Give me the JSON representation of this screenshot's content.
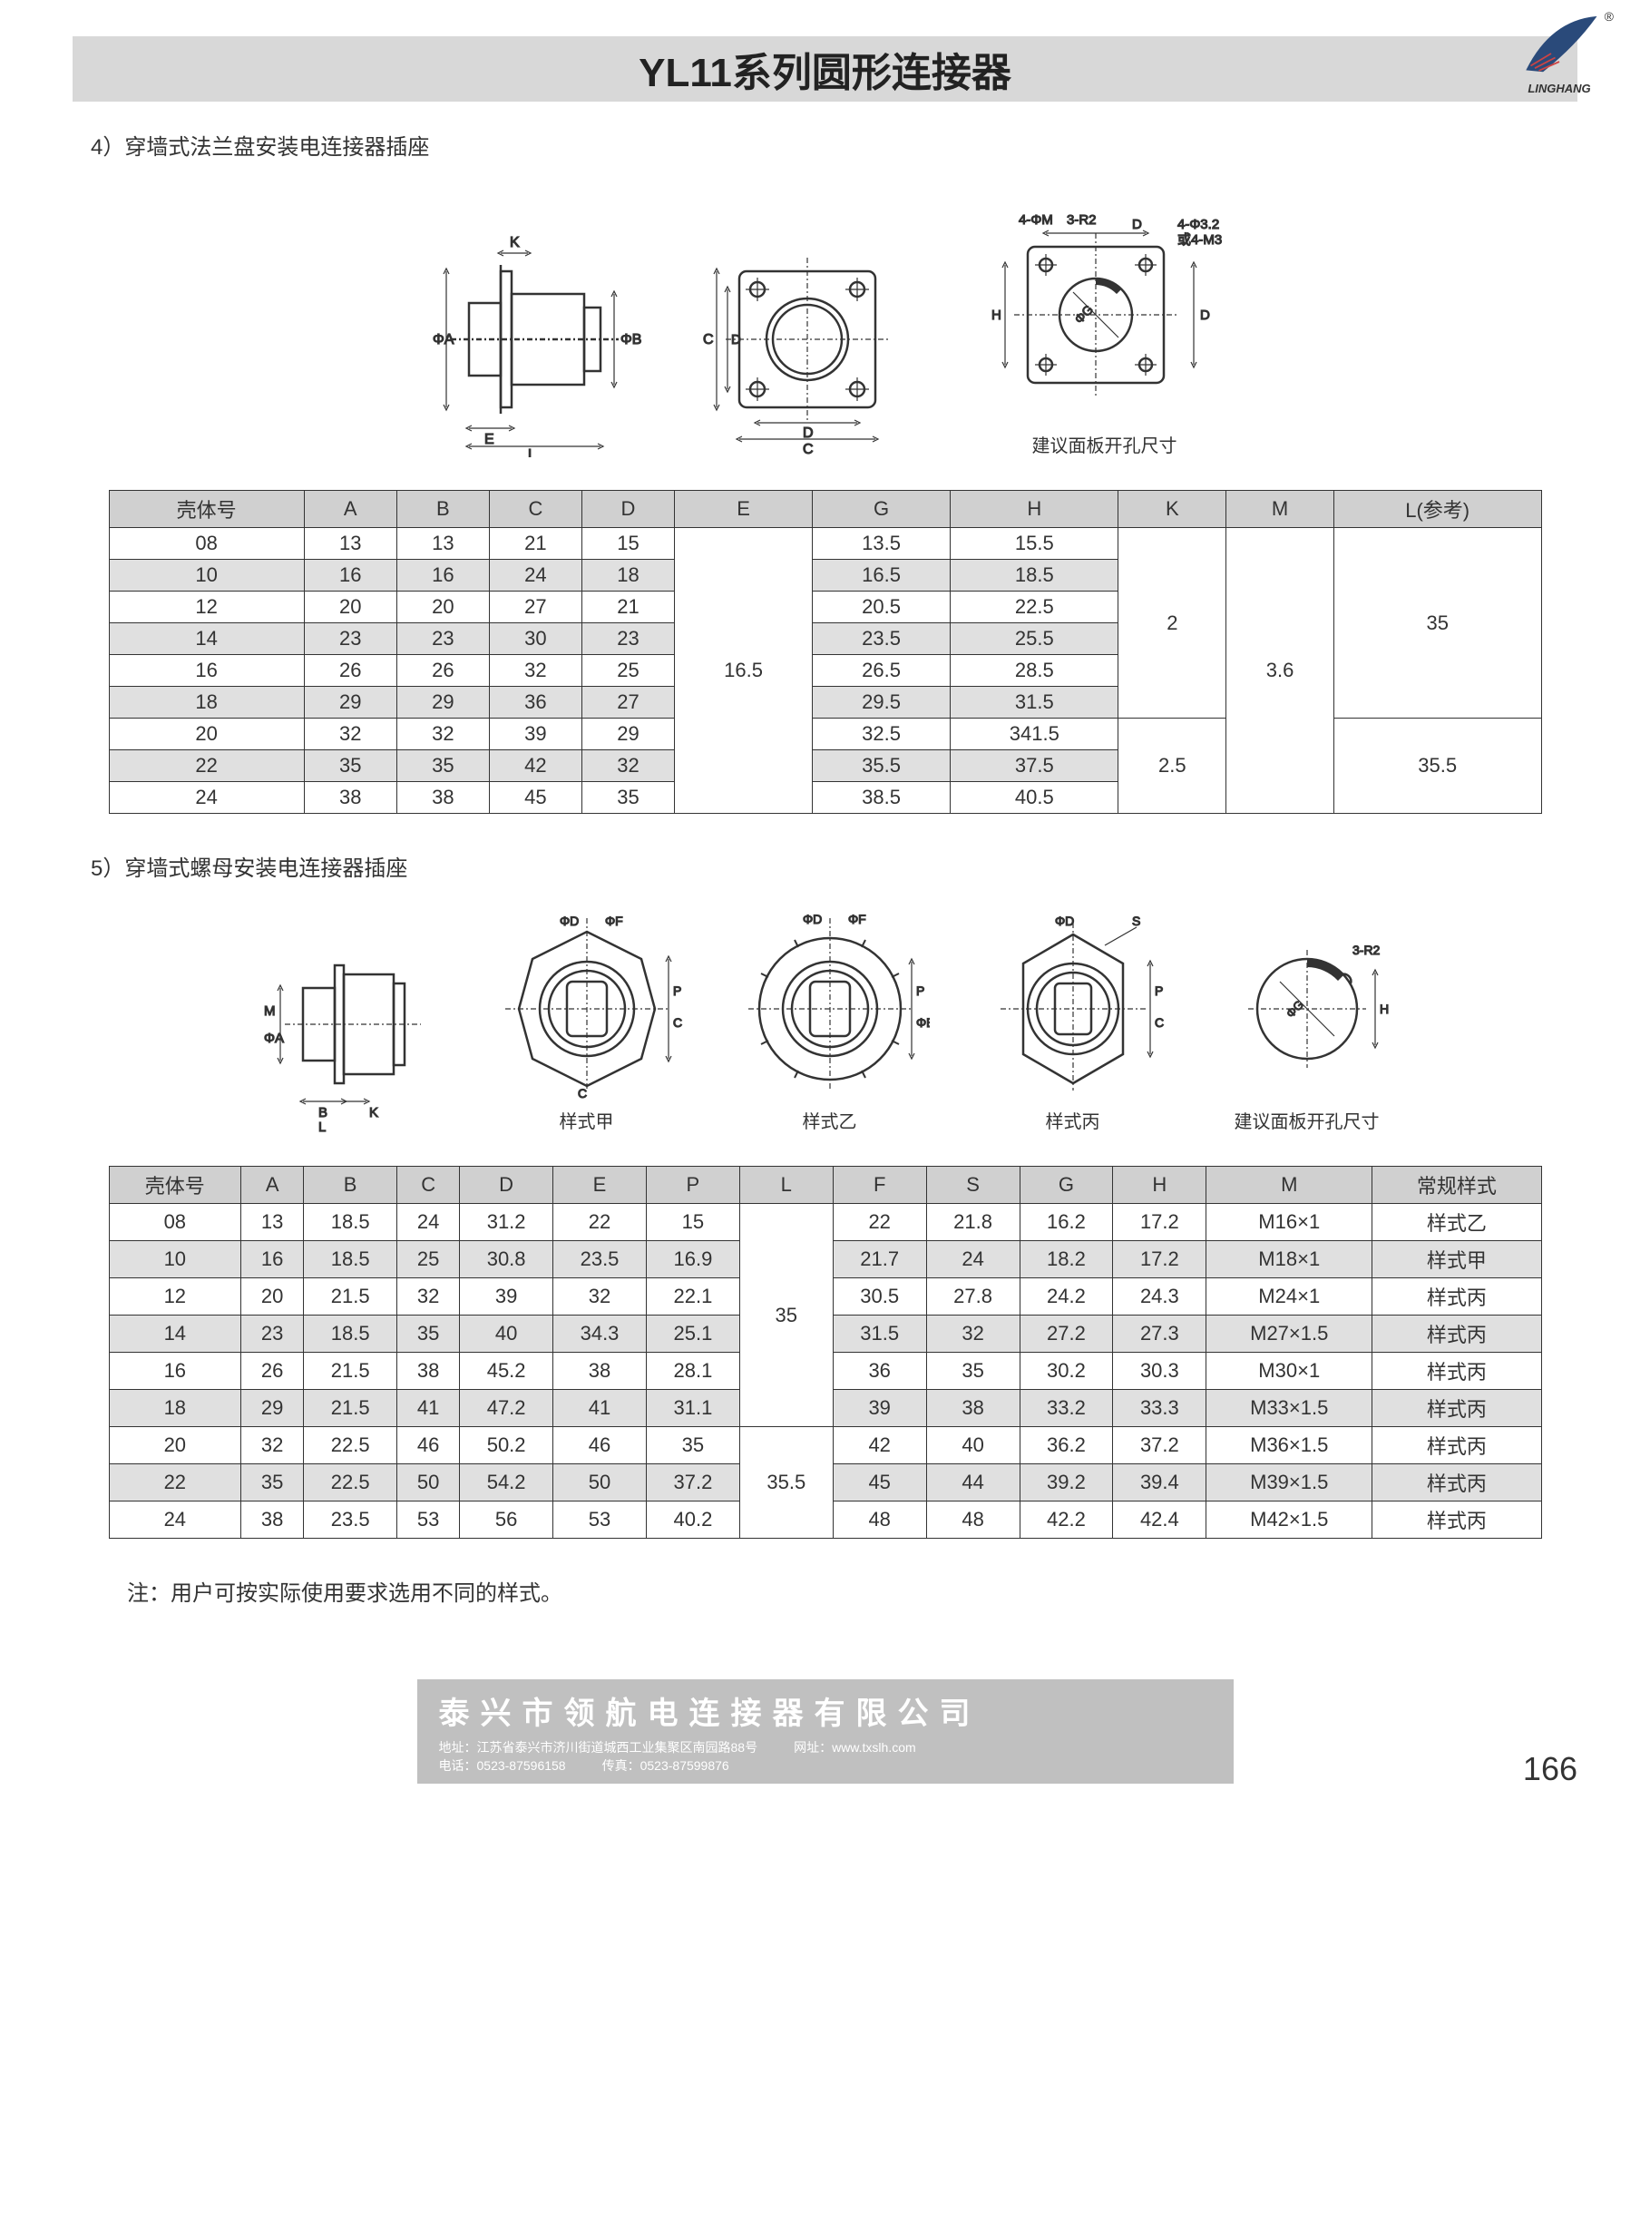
{
  "page": {
    "title": "YL11系列圆形连接器",
    "logo_text": "LINGHANG",
    "registered_mark": "®",
    "number": "166"
  },
  "section4": {
    "heading": "4）穿墙式法兰盘安装电连接器插座",
    "diagram_labels": {
      "d1_A": "ΦA",
      "d1_B": "ΦB",
      "d1_K": "K",
      "d1_E": "E",
      "d1_L": "L",
      "d2_C": "C",
      "d2_D": "D",
      "d3_top1": "4-ΦM",
      "d3_top2": "3-R2",
      "d3_D": "D",
      "d3_H": "H",
      "d3_right": "4-Φ3.2\n或4-M3",
      "d3_G": "ΦG",
      "d3_caption": "建议面板开孔尺寸"
    },
    "table": {
      "headers": [
        "壳体号",
        "A",
        "B",
        "C",
        "D",
        "E",
        "G",
        "H",
        "K",
        "M",
        "L(参考)"
      ],
      "rows": [
        {
          "cells": [
            "08",
            "13",
            "13",
            "21",
            "15",
            "",
            "13.5",
            "15.5",
            "",
            "",
            ""
          ],
          "shaded": false,
          "e_span": 9,
          "k_span": 6,
          "m_span": 6,
          "l_span": 6,
          "e_val": "16.5",
          "k_val": "2",
          "m_val": "3.6",
          "l_val": "35"
        },
        {
          "cells": [
            "10",
            "16",
            "16",
            "24",
            "18",
            "",
            "16.5",
            "18.5",
            "",
            "",
            ""
          ],
          "shaded": true
        },
        {
          "cells": [
            "12",
            "20",
            "20",
            "27",
            "21",
            "",
            "20.5",
            "22.5",
            "",
            "",
            ""
          ],
          "shaded": false
        },
        {
          "cells": [
            "14",
            "23",
            "23",
            "30",
            "23",
            "",
            "23.5",
            "25.5",
            "",
            "",
            ""
          ],
          "shaded": true
        },
        {
          "cells": [
            "16",
            "26",
            "26",
            "32",
            "25",
            "",
            "26.5",
            "28.5",
            "",
            "",
            ""
          ],
          "shaded": false
        },
        {
          "cells": [
            "18",
            "29",
            "29",
            "36",
            "27",
            "",
            "29.5",
            "31.5",
            "",
            "",
            ""
          ],
          "shaded": true
        },
        {
          "cells": [
            "20",
            "32",
            "32",
            "39",
            "29",
            "",
            "32.5",
            "341.5",
            "",
            "",
            ""
          ],
          "shaded": false,
          "k_span2": 3,
          "l_span2": 3,
          "k_val2": "2.5",
          "l_val2": "35.5"
        },
        {
          "cells": [
            "22",
            "35",
            "35",
            "42",
            "32",
            "",
            "35.5",
            "37.5",
            "",
            "",
            ""
          ],
          "shaded": true
        },
        {
          "cells": [
            "24",
            "38",
            "38",
            "45",
            "35",
            "",
            "38.5",
            "40.5",
            "",
            "",
            ""
          ],
          "shaded": false
        }
      ]
    }
  },
  "section5": {
    "heading": "5）穿墙式螺母安装电连接器插座",
    "diagram_labels": {
      "d1_A": "ΦA",
      "d1_M": "M",
      "d1_B": "B",
      "d1_K": "K",
      "d1_L": "L",
      "style_a": "样式甲",
      "style_b": "样式乙",
      "style_c": "样式丙",
      "dF": "ΦF",
      "dD": "ΦD",
      "dC": "C",
      "dP": "P",
      "dE": "ΦE",
      "dS": "S",
      "panel_G": "ΦG",
      "panel_H": "H",
      "panel_R": "3-R2",
      "panel_caption": "建议面板开孔尺寸"
    },
    "table": {
      "headers": [
        "壳体号",
        "A",
        "B",
        "C",
        "D",
        "E",
        "P",
        "L",
        "F",
        "S",
        "G",
        "H",
        "M",
        "常规样式"
      ],
      "rows": [
        {
          "cells": [
            "08",
            "13",
            "18.5",
            "24",
            "31.2",
            "22",
            "15",
            "",
            "22",
            "21.8",
            "16.2",
            "17.2",
            "M16×1",
            "样式乙"
          ],
          "shaded": false,
          "l_span": 6,
          "l_val": "35"
        },
        {
          "cells": [
            "10",
            "16",
            "18.5",
            "25",
            "30.8",
            "23.5",
            "16.9",
            "",
            "21.7",
            "24",
            "18.2",
            "17.2",
            "M18×1",
            "样式甲"
          ],
          "shaded": true
        },
        {
          "cells": [
            "12",
            "20",
            "21.5",
            "32",
            "39",
            "32",
            "22.1",
            "",
            "30.5",
            "27.8",
            "24.2",
            "24.3",
            "M24×1",
            "样式丙"
          ],
          "shaded": false
        },
        {
          "cells": [
            "14",
            "23",
            "18.5",
            "35",
            "40",
            "34.3",
            "25.1",
            "",
            "31.5",
            "32",
            "27.2",
            "27.3",
            "M27×1.5",
            "样式丙"
          ],
          "shaded": true
        },
        {
          "cells": [
            "16",
            "26",
            "21.5",
            "38",
            "45.2",
            "38",
            "28.1",
            "",
            "36",
            "35",
            "30.2",
            "30.3",
            "M30×1",
            "样式丙"
          ],
          "shaded": false
        },
        {
          "cells": [
            "18",
            "29",
            "21.5",
            "41",
            "47.2",
            "41",
            "31.1",
            "",
            "39",
            "38",
            "33.2",
            "33.3",
            "M33×1.5",
            "样式丙"
          ],
          "shaded": true
        },
        {
          "cells": [
            "20",
            "32",
            "22.5",
            "46",
            "50.2",
            "46",
            "35",
            "",
            "42",
            "40",
            "36.2",
            "37.2",
            "M36×1.5",
            "样式丙"
          ],
          "shaded": false,
          "l_span2": 3,
          "l_val2": "35.5"
        },
        {
          "cells": [
            "22",
            "35",
            "22.5",
            "50",
            "54.2",
            "50",
            "37.2",
            "",
            "45",
            "44",
            "39.2",
            "39.4",
            "M39×1.5",
            "样式丙"
          ],
          "shaded": true
        },
        {
          "cells": [
            "24",
            "38",
            "23.5",
            "53",
            "56",
            "53",
            "40.2",
            "",
            "48",
            "48",
            "42.2",
            "42.4",
            "M42×1.5",
            "样式丙"
          ],
          "shaded": false
        }
      ]
    },
    "note": "注：用户可按实际使用要求选用不同的样式。"
  },
  "footer": {
    "company": "泰兴市领航电连接器有限公司",
    "addr_label": "地址：",
    "addr": "江苏省泰兴市济川街道城西工业集聚区南园路88号",
    "web_label": "网址：",
    "web": "www.txslh.com",
    "tel_label": "电话：",
    "tel": "0523-87596158",
    "fax_label": "传真：",
    "fax": "0523-87599876"
  },
  "style": {
    "stroke": "#333",
    "stroke_w": 2.5,
    "thin_stroke": 1.2,
    "bg": "#fff",
    "diagram_fill": "#fff"
  }
}
